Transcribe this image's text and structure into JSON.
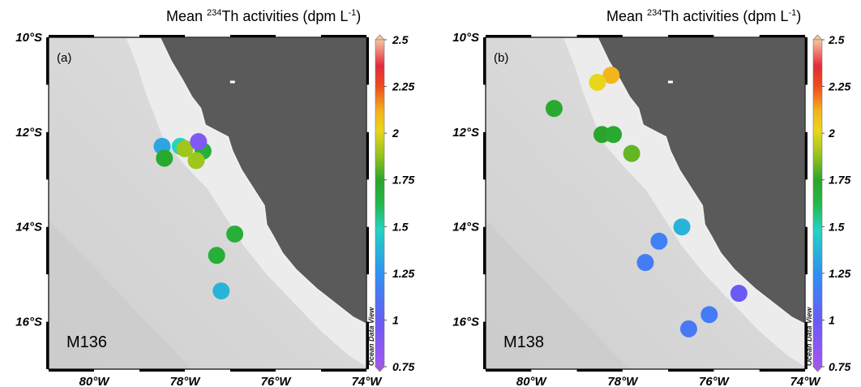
{
  "colorbar": {
    "ticks": [
      "2.5",
      "2.25",
      "2",
      "1.75",
      "1.5",
      "1.25",
      "1",
      "0.75"
    ],
    "min": 0.75,
    "max": 2.5,
    "watermark": "Ocean Data View"
  },
  "axes": {
    "lat_labels": [
      "10°S",
      "12°S",
      "14°S",
      "16°S"
    ],
    "lon_labels": [
      "80°W",
      "78°W",
      "76°W",
      "74°W"
    ]
  },
  "panels": [
    {
      "title_prefix": "Mean ",
      "title_sup": "234",
      "title_mid": "Th activities (dpm L",
      "title_sup2": "-1",
      "title_suffix": ")",
      "label": "(a)",
      "cruise": "M136"
    },
    {
      "title_prefix": "Mean ",
      "title_sup": "234",
      "title_mid": "Th activities (dpm L",
      "title_sup2": "-1",
      "title_suffix": ")",
      "label": "(b)",
      "cruise": "M138"
    }
  ],
  "chart_data": {
    "type": "scatter",
    "title": "Mean 234Th activities (dpm L-1)",
    "xlim": [
      -81,
      -74
    ],
    "ylim": [
      -17,
      -10
    ],
    "panels": [
      {
        "name": "M136",
        "points": [
          {
            "lon": -78.5,
            "lat": -12.3,
            "value": 1.3
          },
          {
            "lon": -78.1,
            "lat": -12.3,
            "value": 1.4
          },
          {
            "lon": -78.0,
            "lat": -12.35,
            "value": 1.72
          },
          {
            "lon": -77.6,
            "lat": -12.4,
            "value": 1.55
          },
          {
            "lon": -77.7,
            "lat": -12.2,
            "value": 0.9
          },
          {
            "lon": -78.45,
            "lat": -12.55,
            "value": 1.58
          },
          {
            "lon": -77.75,
            "lat": -12.6,
            "value": 1.72
          },
          {
            "lon": -76.9,
            "lat": -14.15,
            "value": 1.55
          },
          {
            "lon": -77.3,
            "lat": -14.6,
            "value": 1.55
          },
          {
            "lon": -77.2,
            "lat": -15.35,
            "value": 1.33
          }
        ]
      },
      {
        "name": "M138",
        "points": [
          {
            "lon": -78.25,
            "lat": -10.8,
            "value": 1.92
          },
          {
            "lon": -78.55,
            "lat": -10.95,
            "value": 1.8
          },
          {
            "lon": -79.5,
            "lat": -11.5,
            "value": 1.58
          },
          {
            "lon": -78.45,
            "lat": -12.05,
            "value": 1.6
          },
          {
            "lon": -78.2,
            "lat": -12.05,
            "value": 1.58
          },
          {
            "lon": -77.8,
            "lat": -12.45,
            "value": 1.66
          },
          {
            "lon": -76.7,
            "lat": -14.0,
            "value": 1.33
          },
          {
            "lon": -77.2,
            "lat": -14.3,
            "value": 1.18
          },
          {
            "lon": -77.5,
            "lat": -14.75,
            "value": 1.16
          },
          {
            "lon": -75.45,
            "lat": -15.4,
            "value": 1.0
          },
          {
            "lon": -76.1,
            "lat": -15.85,
            "value": 1.16
          },
          {
            "lon": -76.55,
            "lat": -16.15,
            "value": 1.14
          }
        ]
      }
    ]
  }
}
